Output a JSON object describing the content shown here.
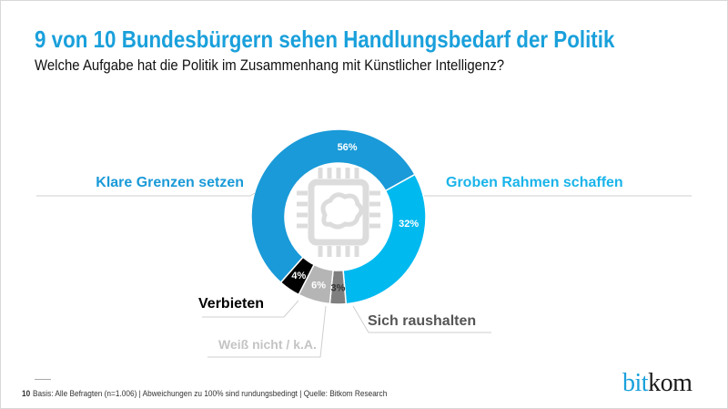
{
  "header": {
    "title": "9 von 10 Bundesbürgern sehen Handlungsbedarf der Politik",
    "subtitle": "Welche Aufgabe hat die Politik im Zusammenhang mit Künstlicher Intelligenz?"
  },
  "chart_data": {
    "type": "pie",
    "variant": "donut",
    "center_icon": "chip-brain-icon",
    "series": [
      {
        "label": "Groben Rahmen schaffen",
        "value": 32,
        "value_label": "32%",
        "color": "#00b9ef",
        "label_color": "#1ab4ea"
      },
      {
        "label": "Sich raushalten",
        "value": 3,
        "value_label": "3%",
        "color": "#7f7f7f",
        "label_color": "#555555"
      },
      {
        "label": "Weiß nicht / k.A.",
        "value": 6,
        "value_label": "6%",
        "color": "#b5b5b5",
        "label_color": "#c4c4c4"
      },
      {
        "label": "Verbieten",
        "value": 4,
        "value_label": "4%",
        "color": "#000000",
        "label_color": "#000000"
      },
      {
        "label": "Klare Grenzen setzen",
        "value": 56,
        "value_label": "56%",
        "color": "#1a9ad8",
        "label_color": "#1a9ad8"
      }
    ]
  },
  "footer": {
    "page_number": "10",
    "note": "Basis: Alle Befragten (n=1.006) | Abweichungen zu 100% sind rundungsbedingt | Quelle: Bitkom Research"
  },
  "logo": {
    "part1": "bit",
    "part2": "kom"
  }
}
